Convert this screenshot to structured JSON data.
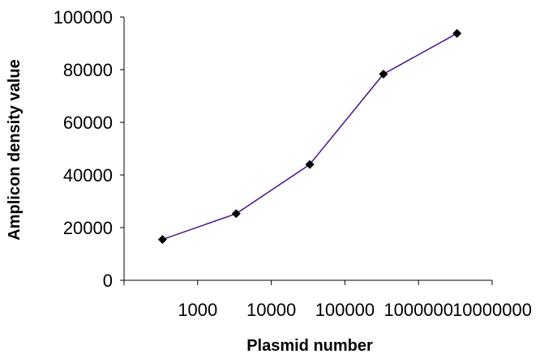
{
  "chart_data": {
    "type": "line",
    "title": "",
    "xlabel": "Plasmid number",
    "ylabel": "Amplicon density value",
    "x_scale": "log",
    "x_ticks": [
      1000,
      10000,
      100000,
      1000000,
      10000000
    ],
    "x_tick_labels": [
      "1000",
      "10000",
      "100000",
      "1000000",
      "10000000"
    ],
    "xlim": [
      100,
      10000000
    ],
    "y_ticks": [
      0,
      20000,
      40000,
      60000,
      80000,
      100000
    ],
    "y_tick_labels": [
      "0",
      "20000",
      "40000",
      "60000",
      "80000",
      "100000"
    ],
    "ylim": [
      0,
      100000
    ],
    "grid": false,
    "legend": "none",
    "series": [
      {
        "x": [
          333,
          3333,
          33333,
          333333,
          3333333
        ],
        "y": [
          15500,
          25300,
          44000,
          78300,
          93800
        ],
        "line_color": "#4b0f8c",
        "marker": "diamond",
        "marker_color": "#000000"
      }
    ]
  }
}
